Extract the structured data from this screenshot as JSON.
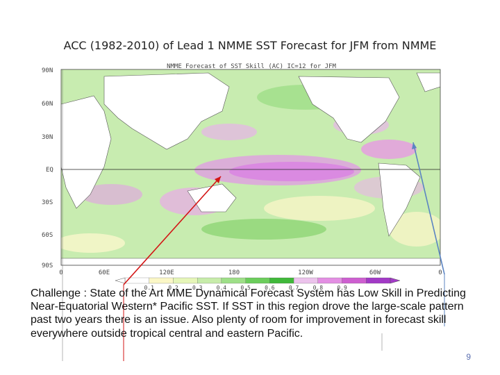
{
  "slide": {
    "title": "ACC (1982-2010) of Lead 1 NMME SST Forecast for JFM from NMME",
    "page_number": "9",
    "challenge_text": "Challenge : State of the Art MME Dynamical Forecast System has Low Skill in Predicting Near-Equatorial Western* Pacific SST. If SST in this region drove the large-scale pattern past two years there is an issue. Also plenty of room for improvement in forecast skill everywhere outside tropical central and eastern Pacific."
  },
  "map": {
    "inner_title": "NMME Forecast of SST Skill (AC) IC=12 for JFM",
    "lat_labels": [
      "90N",
      "60N",
      "30N",
      "EQ",
      "30S",
      "60S",
      "90S"
    ],
    "lon_labels": [
      "0",
      "60E",
      "120E",
      "180",
      "120W",
      "60W",
      "0"
    ],
    "colorbar_labels": [
      "0.1",
      "0.2",
      "0.3",
      "0.4",
      "0.5",
      "0.6",
      "0.7",
      "0.8",
      "0.9"
    ],
    "colorbar_colors": [
      "#ffffff",
      "#fbf7c6",
      "#e6f6b8",
      "#c7ecaa",
      "#9edf88",
      "#6ccd5c",
      "#40b83a",
      "#ecc3ec",
      "#e38fe3",
      "#cd5fd0",
      "#a23ac6"
    ],
    "land_color": "#ffffff",
    "ocean_base": "#c8ecb0",
    "arrow_colors": {
      "red": "#d31515",
      "blue": "#5b84c2"
    }
  }
}
